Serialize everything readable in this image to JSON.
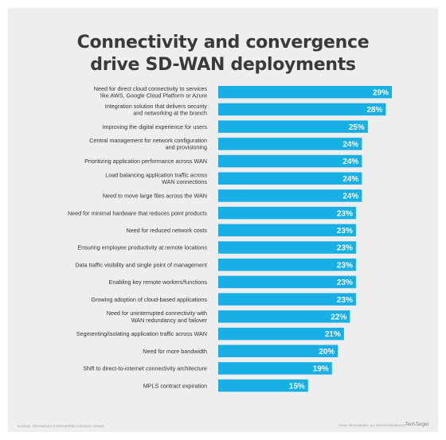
{
  "title_lines": [
    "Connectivity and convergence",
    "drive SD-WAN deployments"
  ],
  "source": "SOURCE: TECHTARGET'S ENTERPRISE STRATEGY GROUP",
  "copyright": "©2022 TECHTARGET. ALL RIGHTS RESERVED.",
  "brand": "TechTarget",
  "colors": {
    "bar": "#18afe4",
    "background": "#eeeeee",
    "title": "#3a3a3a"
  },
  "chart_data": {
    "type": "bar",
    "orientation": "horizontal",
    "value_suffix": "%",
    "xlim": [
      0,
      29
    ],
    "categories": [
      [
        "Need for direct cloud connectivity to services",
        "like AWS, Google Cloud Platform or Azure"
      ],
      [
        "Integration solution that delivers security",
        "and networking at the branch"
      ],
      [
        "Improving the digital experience for users"
      ],
      [
        "Central management for network configuration",
        "and provisioning"
      ],
      [
        "Prioritizing application performance across WAN"
      ],
      [
        "Load balancing application traffic across",
        "WAN connections"
      ],
      [
        "Need to move large files across the WAN"
      ],
      [
        "Need for minimal hardware that reduces point products"
      ],
      [
        "Need for reduced network costs"
      ],
      [
        "Ensuring employee productivity at remote locations"
      ],
      [
        "Data traffic visibility and single point of management"
      ],
      [
        "Enabling key remote workers/functions"
      ],
      [
        "Growing adoption of cloud-based applications"
      ],
      [
        "Need for uninterrupted connectivity with",
        "WAN redundancy and failover"
      ],
      [
        "Segmenting/isolating application traffic across WAN"
      ],
      [
        "Need for more bandwidth"
      ],
      [
        "Shift to direct-to-internet connectivity architecture"
      ],
      [
        "MPLS contract expiration"
      ]
    ],
    "values": [
      29,
      28,
      25,
      24,
      24,
      24,
      24,
      23,
      23,
      23,
      23,
      23,
      23,
      22,
      21,
      20,
      19,
      15
    ]
  }
}
